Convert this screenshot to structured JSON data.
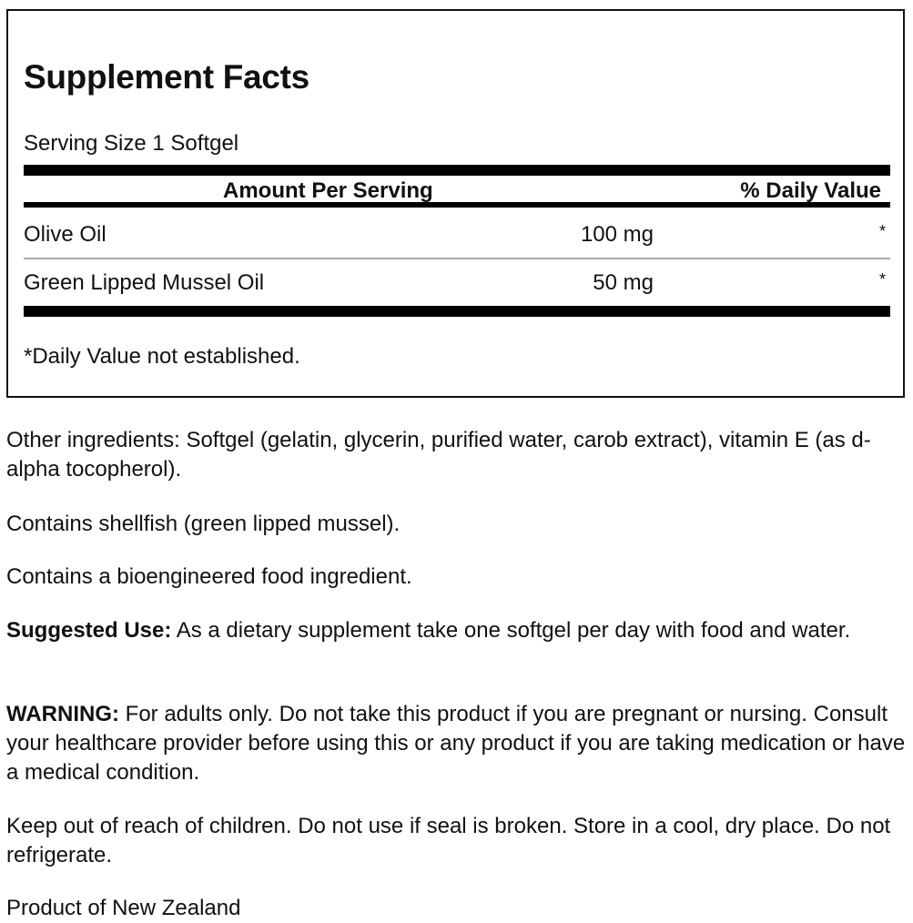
{
  "facts": {
    "title": "Supplement Facts",
    "serving_size": "Serving Size 1 Softgel",
    "header_amount": "Amount Per Serving",
    "header_dv": "% Daily Value",
    "rows": [
      {
        "name": "Olive Oil",
        "amount": "100 mg",
        "dv": "*"
      },
      {
        "name": "Green Lipped Mussel Oil",
        "amount": "50 mg",
        "dv": "*"
      }
    ],
    "footnote": "*Daily Value not established."
  },
  "info": {
    "other_ingredients": "Other ingredients: Softgel (gelatin, glycerin, purified water, carob extract), vitamin E (as d-alpha tocopherol).",
    "allergen": "Contains shellfish (green lipped mussel).",
    "bioengineered": "Contains a bioengineered food ingredient.",
    "suggested_use_label": "Suggested Use:",
    "suggested_use": " As a dietary supplement take one softgel per day with food and water.",
    "warning_label": "WARNING:",
    "warning": " For adults only. Do not take this product if you are pregnant or nursing. Consult your healthcare provider before using this or any product if you are taking medication or have a medical condition.",
    "storage": "Keep out of reach of children. Do not use if seal is broken. Store in a cool, dry place. Do not refrigerate.",
    "origin": "Product of New Zealand"
  }
}
